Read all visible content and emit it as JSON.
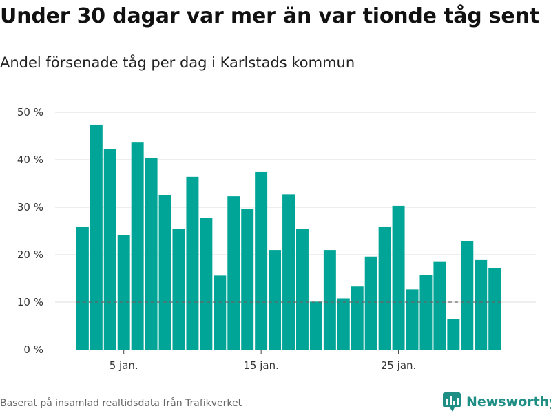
{
  "chart_data": {
    "type": "bar",
    "title": "Under 30 dagar var mer än var tionde tåg sent",
    "subtitle": "Andel försenade tåg per dag i Karlstads kommun",
    "x": [
      2,
      3,
      4,
      5,
      6,
      7,
      8,
      9,
      10,
      11,
      12,
      13,
      14,
      15,
      16,
      17,
      18,
      19,
      20,
      21,
      22,
      23,
      24,
      25,
      26,
      27,
      28,
      29,
      30,
      31,
      32
    ],
    "values": [
      25.8,
      47.4,
      42.3,
      24.2,
      43.6,
      40.4,
      32.6,
      25.4,
      36.4,
      27.8,
      15.6,
      32.3,
      29.6,
      37.4,
      21.0,
      32.7,
      25.4,
      10.1,
      21.0,
      10.8,
      13.3,
      19.6,
      25.8,
      30.3,
      12.7,
      15.7,
      18.6,
      6.5,
      22.9,
      19.0,
      17.1
    ],
    "xticks": [
      {
        "x": 5,
        "label": "5 jan."
      },
      {
        "x": 15,
        "label": "15 jan."
      },
      {
        "x": 25,
        "label": "25 jan."
      }
    ],
    "yticks": [
      {
        "y": 0,
        "label": "0 %"
      },
      {
        "y": 10,
        "label": "10 %"
      },
      {
        "y": 20,
        "label": "20 %"
      },
      {
        "y": 30,
        "label": "30 %"
      },
      {
        "y": 40,
        "label": "40 %"
      },
      {
        "y": 50,
        "label": "50 %"
      }
    ],
    "xlim": [
      0,
      35
    ],
    "ylim": [
      0,
      50
    ],
    "reference_line": 10,
    "grid": true,
    "bar_color": "#00a597",
    "reference_color": "#666666"
  },
  "footer": {
    "source": "Baserat på insamlad realtidsdata från Trafikverket",
    "brand": "Newsworthy",
    "brand_icon": "bar-chart-icon",
    "brand_color": "#1f8f86"
  }
}
